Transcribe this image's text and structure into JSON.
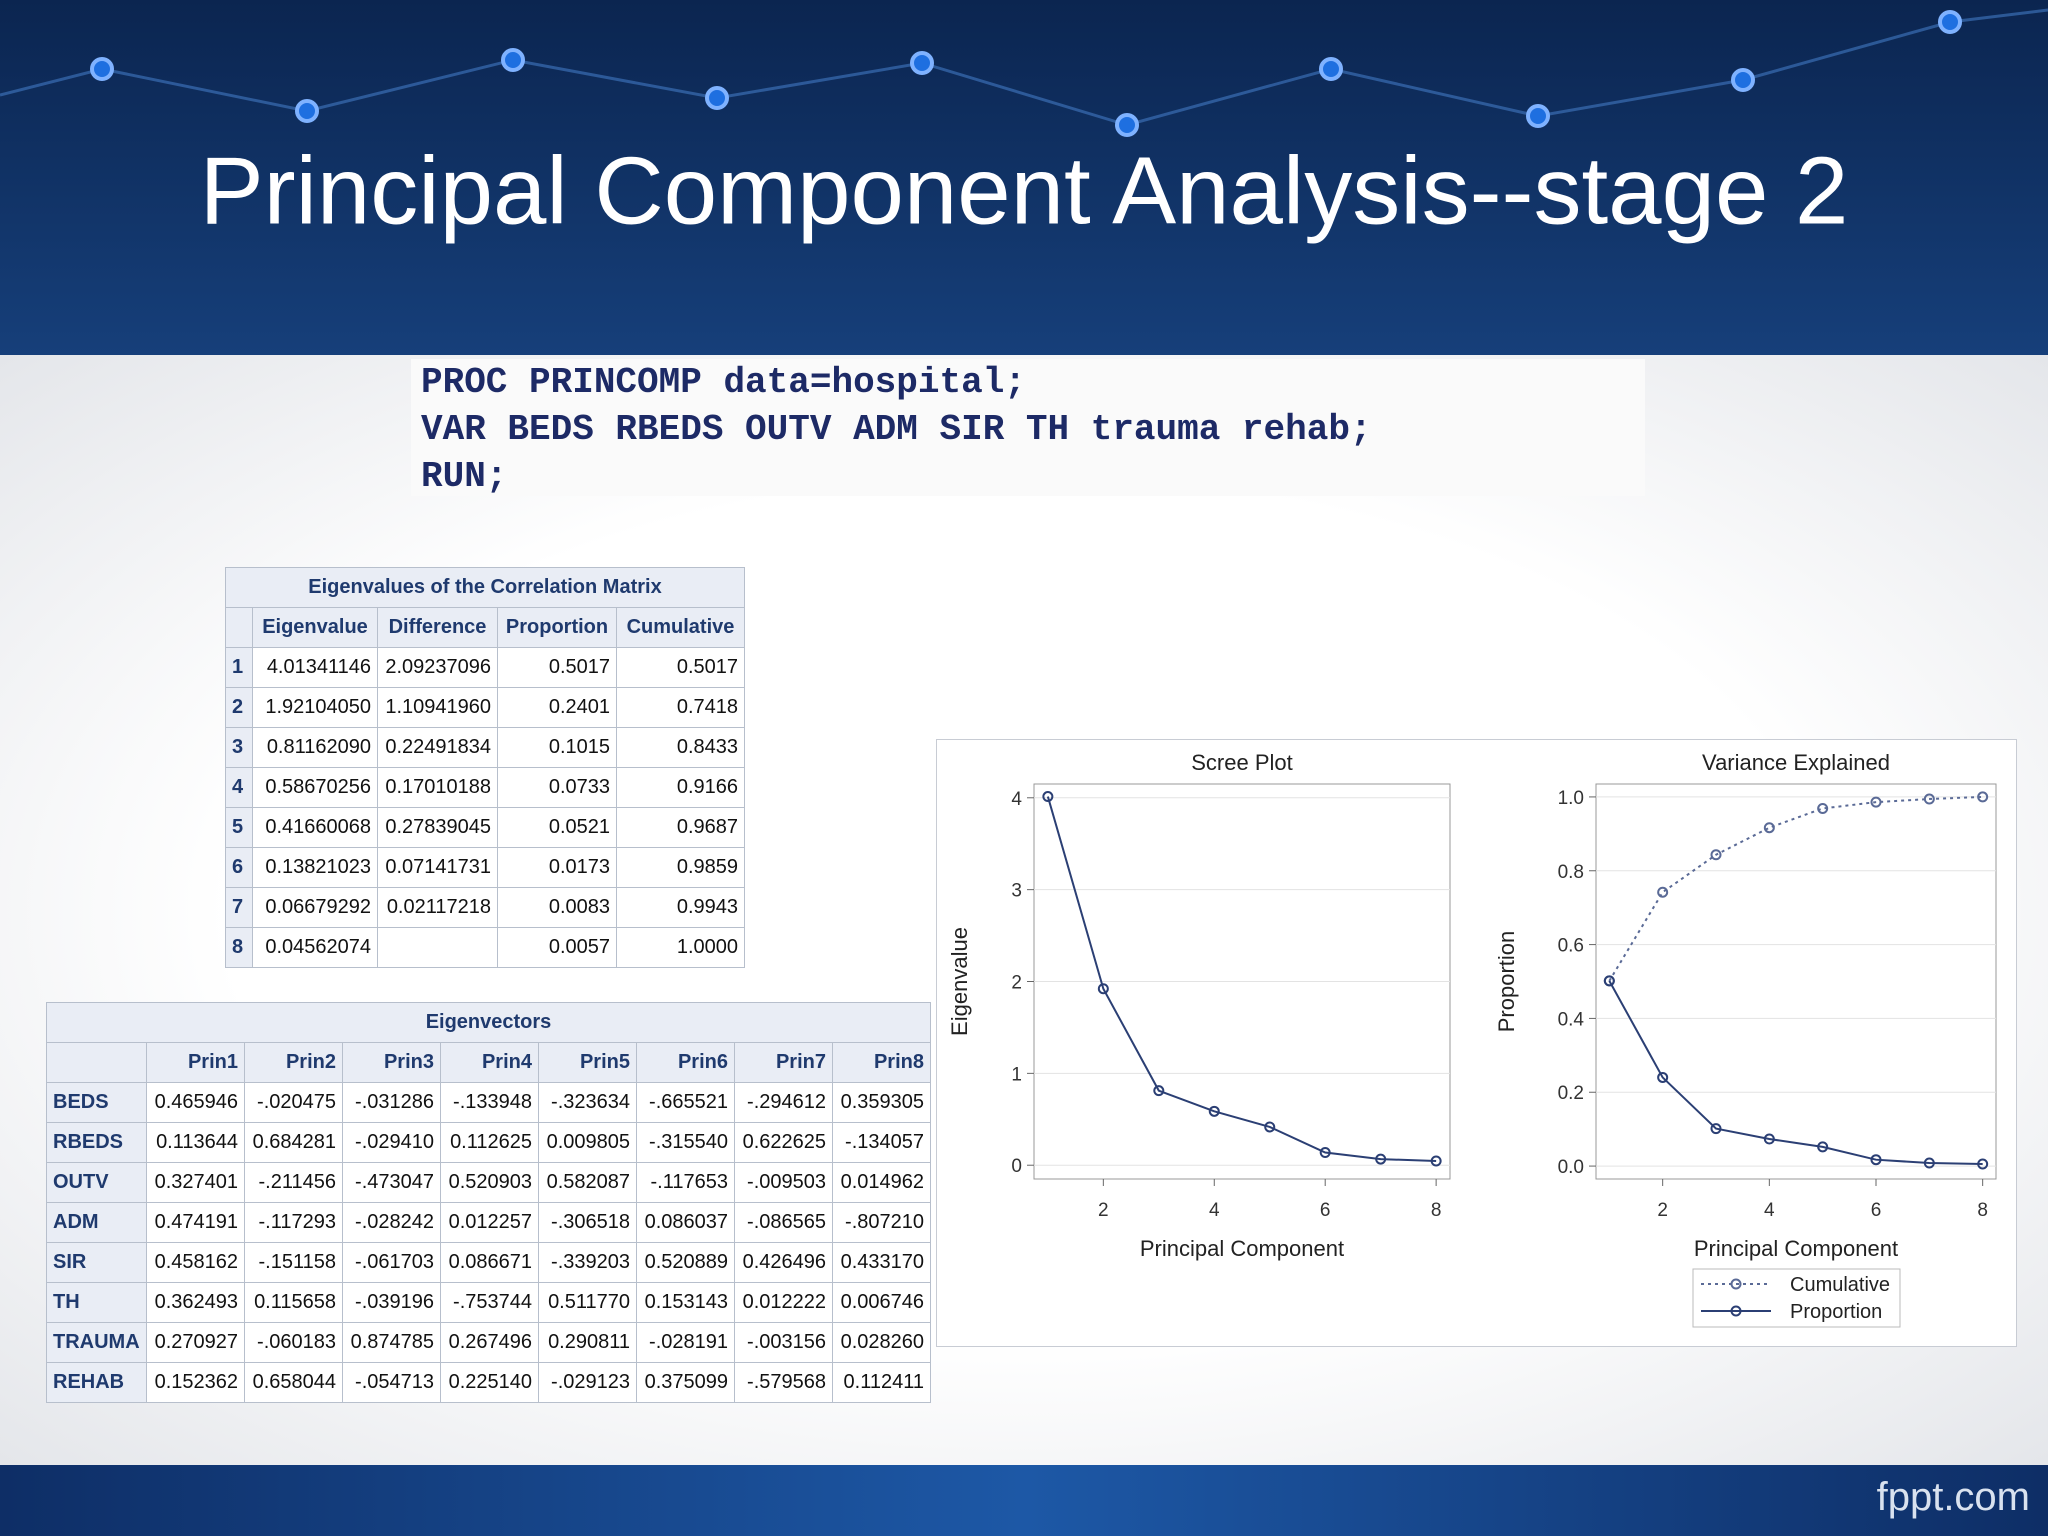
{
  "header": {
    "title": "Principal Component Analysis--stage 2"
  },
  "code": {
    "lines": [
      "PROC PRINCOMP data=hospital;",
      "VAR BEDS RBEDS OUTV ADM SIR TH trauma rehab;",
      "RUN;"
    ]
  },
  "eigenvalues_table": {
    "title": "Eigenvalues of the Correlation Matrix",
    "columns": [
      "Eigenvalue",
      "Difference",
      "Proportion",
      "Cumulative"
    ],
    "rows": [
      [
        "1",
        "4.01341146",
        "2.09237096",
        "0.5017",
        "0.5017"
      ],
      [
        "2",
        "1.92104050",
        "1.10941960",
        "0.2401",
        "0.7418"
      ],
      [
        "3",
        "0.81162090",
        "0.22491834",
        "0.1015",
        "0.8433"
      ],
      [
        "4",
        "0.58670256",
        "0.17010188",
        "0.0733",
        "0.9166"
      ],
      [
        "5",
        "0.41660068",
        "0.27839045",
        "0.0521",
        "0.9687"
      ],
      [
        "6",
        "0.13821023",
        "0.07141731",
        "0.0173",
        "0.9859"
      ],
      [
        "7",
        "0.06679292",
        "0.02117218",
        "0.0083",
        "0.9943"
      ],
      [
        "8",
        "0.04562074",
        null,
        "0.0057",
        "1.0000"
      ]
    ]
  },
  "eigenvectors_table": {
    "title": "Eigenvectors",
    "columns": [
      "Prin1",
      "Prin2",
      "Prin3",
      "Prin4",
      "Prin5",
      "Prin6",
      "Prin7",
      "Prin8"
    ],
    "rows": [
      [
        "BEDS",
        "0.465946",
        "-.020475",
        "-.031286",
        "-.133948",
        "-.323634",
        "-.665521",
        "-.294612",
        "0.359305"
      ],
      [
        "RBEDS",
        "0.113644",
        "0.684281",
        "-.029410",
        "0.112625",
        "0.009805",
        "-.315540",
        "0.622625",
        "-.134057"
      ],
      [
        "OUTV",
        "0.327401",
        "-.211456",
        "-.473047",
        "0.520903",
        "0.582087",
        "-.117653",
        "-.009503",
        "0.014962"
      ],
      [
        "ADM",
        "0.474191",
        "-.117293",
        "-.028242",
        "0.012257",
        "-.306518",
        "0.086037",
        "-.086565",
        "-.807210"
      ],
      [
        "SIR",
        "0.458162",
        "-.151158",
        "-.061703",
        "0.086671",
        "-.339203",
        "0.520889",
        "0.426496",
        "0.433170"
      ],
      [
        "TH",
        "0.362493",
        "0.115658",
        "-.039196",
        "-.753744",
        "0.511770",
        "0.153143",
        "0.012222",
        "0.006746"
      ],
      [
        "TRAUMA",
        "0.270927",
        "-.060183",
        "0.874785",
        "0.267496",
        "0.290811",
        "-.028191",
        "-.003156",
        "0.028260"
      ],
      [
        "REHAB",
        "0.152362",
        "0.658044",
        "-.054713",
        "0.225140",
        "-.029123",
        "0.375099",
        "-.579568",
        "0.112411"
      ]
    ]
  },
  "chart_data": [
    {
      "type": "line",
      "title": "Scree Plot",
      "x_label": "Principal Component",
      "y_label": "Eigenvalue",
      "x": [
        1,
        2,
        3,
        4,
        5,
        6,
        7,
        8
      ],
      "series": [
        {
          "color": "#2b3f74",
          "values": [
            4.01341146,
            1.9210405,
            0.8116209,
            0.58670256,
            0.41660068,
            0.13821023,
            0.06679292,
            0.04562074
          ]
        }
      ],
      "xlim": [
        0.75,
        8.25
      ],
      "xticks": [
        2,
        4,
        6,
        8
      ],
      "ylim": [
        -0.15,
        4.15
      ],
      "yticks": [
        0,
        1,
        2,
        3,
        4
      ],
      "grid": true
    },
    {
      "type": "line",
      "title": "Variance Explained",
      "x_label": "Principal Component",
      "y_label": "Proportion",
      "x": [
        1,
        2,
        3,
        4,
        5,
        6,
        7,
        8
      ],
      "series": [
        {
          "name": "Cumulative",
          "color": "#5a6a96",
          "style": "dotted",
          "values": [
            0.5017,
            0.7418,
            0.8433,
            0.9166,
            0.9687,
            0.9859,
            0.9943,
            1.0
          ]
        },
        {
          "name": "Proportion",
          "color": "#2b3f74",
          "style": "solid",
          "values": [
            0.5017,
            0.2401,
            0.1015,
            0.0733,
            0.0521,
            0.0173,
            0.0083,
            0.0057
          ]
        }
      ],
      "xlim": [
        0.75,
        8.25
      ],
      "xticks": [
        2,
        4,
        6,
        8
      ],
      "ylim": [
        -0.035,
        1.035
      ],
      "yticks": [
        {
          "value": 0,
          "label": "0.0"
        },
        0.2,
        0.4,
        0.6,
        0.8,
        {
          "value": 1,
          "label": "1.0"
        }
      ],
      "grid": true,
      "legend": "bottom"
    }
  ],
  "footer": {
    "brand": "fppt.com"
  }
}
